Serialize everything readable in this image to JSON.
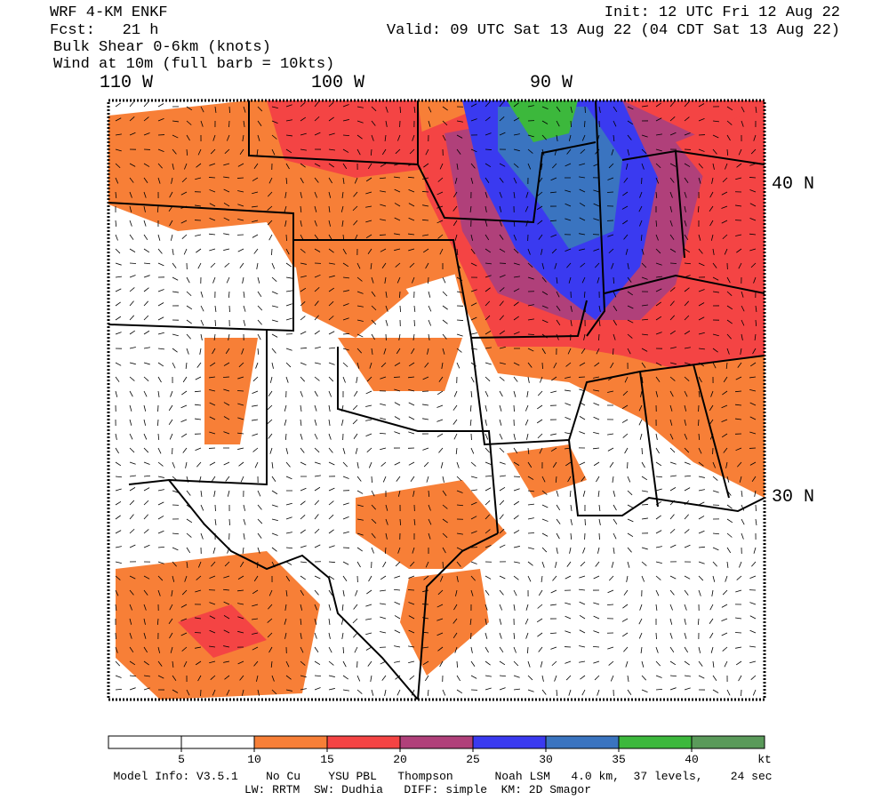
{
  "header": {
    "model": "WRF 4-KM ENKF",
    "forecast": "Fcst:   21 h",
    "init": "Init: 12 UTC Fri 12 Aug 22",
    "valid": "Valid: 09 UTC Sat 13 Aug 22 (04 CDT Sat 13 Aug 22)",
    "field": "Bulk Shear 0-6km (knots)",
    "overlay": "Wind at 10m (full barb = 10kts)"
  },
  "map": {
    "longitudes": [
      "110 W",
      "100 W",
      "90 W"
    ],
    "latitudes": [
      "40 N",
      "30 N"
    ]
  },
  "colorbar": {
    "ticks": [
      5,
      10,
      15,
      20,
      25,
      30,
      35,
      40
    ],
    "unit": "kt",
    "colors": [
      "#ffffff",
      "#ffffff",
      "#f77f37",
      "#f44444",
      "#b0407a",
      "#3a3af0",
      "#3a74c0",
      "#3cb83c",
      "#5a9a5a"
    ]
  },
  "footer": {
    "line1": "Model Info: V3.5.1    No Cu    YSU PBL   Thompson      Noah LSM   4.0 km,  37 levels,    24 sec",
    "line2": "LW: RRTM  SW: Dudhia   DIFF: simple  KM: 2D Smagor"
  }
}
